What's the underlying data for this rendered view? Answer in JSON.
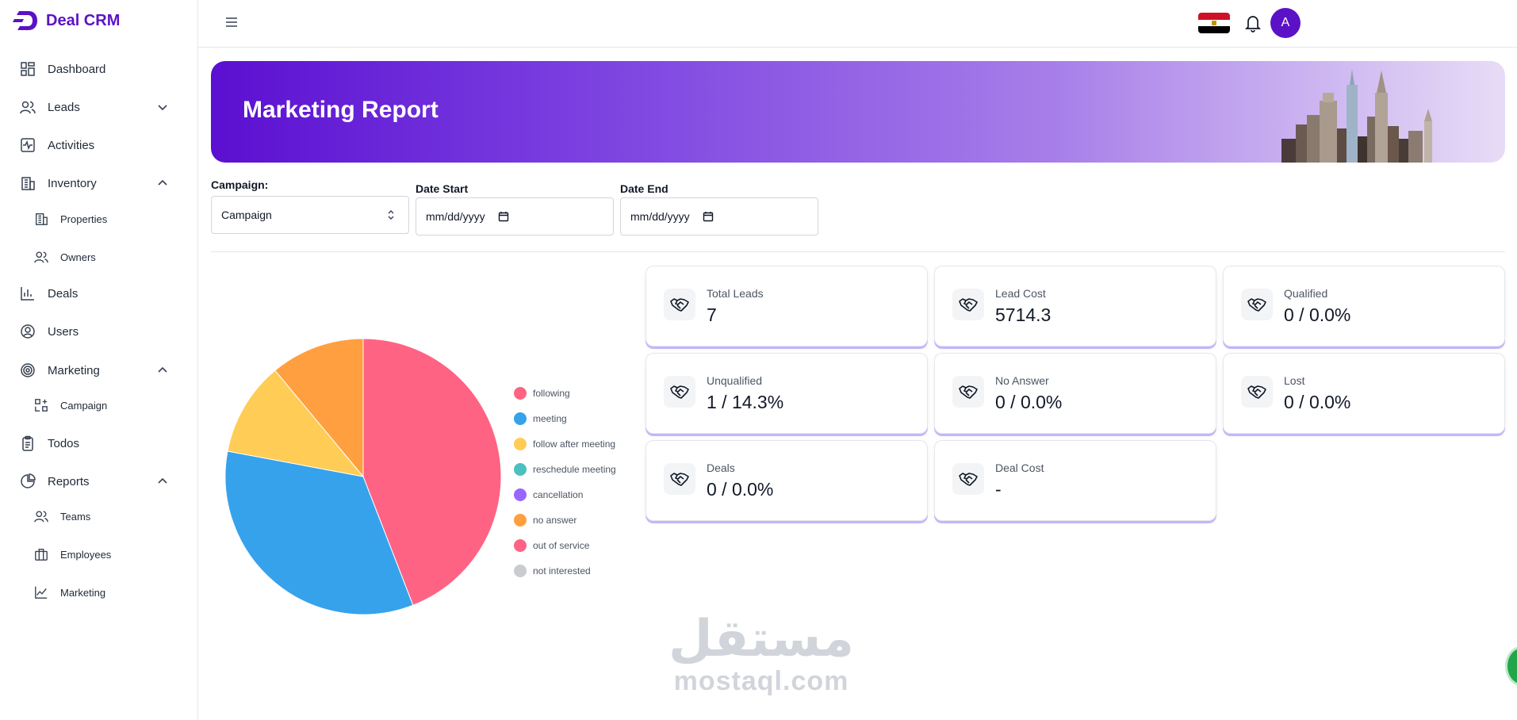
{
  "brand": {
    "name": "Deal CRM"
  },
  "sidebar": {
    "items": [
      {
        "label": "Dashboard",
        "icon": "dashboard-icon"
      },
      {
        "label": "Leads",
        "icon": "users-icon",
        "expanded": false
      },
      {
        "label": "Activities",
        "icon": "activity-icon"
      },
      {
        "label": "Inventory",
        "icon": "building-icon",
        "expanded": true,
        "children": [
          {
            "label": "Properties",
            "icon": "building-icon"
          },
          {
            "label": "Owners",
            "icon": "users-icon"
          }
        ]
      },
      {
        "label": "Deals",
        "icon": "bar-chart-icon"
      },
      {
        "label": "Users",
        "icon": "user-circle-icon"
      },
      {
        "label": "Marketing",
        "icon": "target-icon",
        "expanded": true,
        "children": [
          {
            "label": "Campaign",
            "icon": "campaign-icon"
          }
        ]
      },
      {
        "label": "Todos",
        "icon": "clipboard-icon"
      },
      {
        "label": "Reports",
        "icon": "pie-chart-icon",
        "expanded": true,
        "children": [
          {
            "label": "Teams",
            "icon": "users-icon"
          },
          {
            "label": "Employees",
            "icon": "briefcase-icon"
          },
          {
            "label": "Marketing",
            "icon": "line-chart-icon"
          }
        ]
      }
    ]
  },
  "topbar": {
    "avatar_initial": "A",
    "flag": "egypt-flag-icon"
  },
  "banner": {
    "title": "Marketing Report"
  },
  "filters": {
    "campaign": {
      "label": "Campaign:",
      "value": "Campaign"
    },
    "date_start": {
      "label": "Date Start",
      "value": "mm/dd/yyyy"
    },
    "date_end": {
      "label": "Date End",
      "value": "mm/dd/yyyy"
    }
  },
  "cards": [
    {
      "label": "Total Leads",
      "value": "7"
    },
    {
      "label": "Lead Cost",
      "value": "5714.3"
    },
    {
      "label": "Qualified",
      "value": "0 / 0.0%"
    },
    {
      "label": "Unqualified",
      "value": "1 / 14.3%"
    },
    {
      "label": "No Answer",
      "value": "0 / 0.0%"
    },
    {
      "label": "Lost",
      "value": "0 / 0.0%"
    },
    {
      "label": "Deals",
      "value": "0 / 0.0%"
    },
    {
      "label": "Deal Cost",
      "value": "-"
    }
  ],
  "chart_data": {
    "type": "pie",
    "categories": [
      "following",
      "meeting",
      "follow after meeting",
      "reschedule meeting",
      "cancellation",
      "no answer",
      "out of service",
      "not interested"
    ],
    "values": [
      3,
      2.3,
      0.75,
      0,
      0,
      0.75,
      0,
      0
    ],
    "colors": [
      "#ff6384",
      "#36a2eb",
      "#ffcd56",
      "#4bc0c0",
      "#9966ff",
      "#ff9f40",
      "#ff6384",
      "#c9cbcf"
    ],
    "legend": "right"
  },
  "watermark": {
    "arabic": "مستقل",
    "latin": "mostaql.com"
  },
  "colors": {
    "brand": "#5b12c7",
    "banner_start": "#5b0fd1",
    "banner_end": "#e7dcf6"
  }
}
